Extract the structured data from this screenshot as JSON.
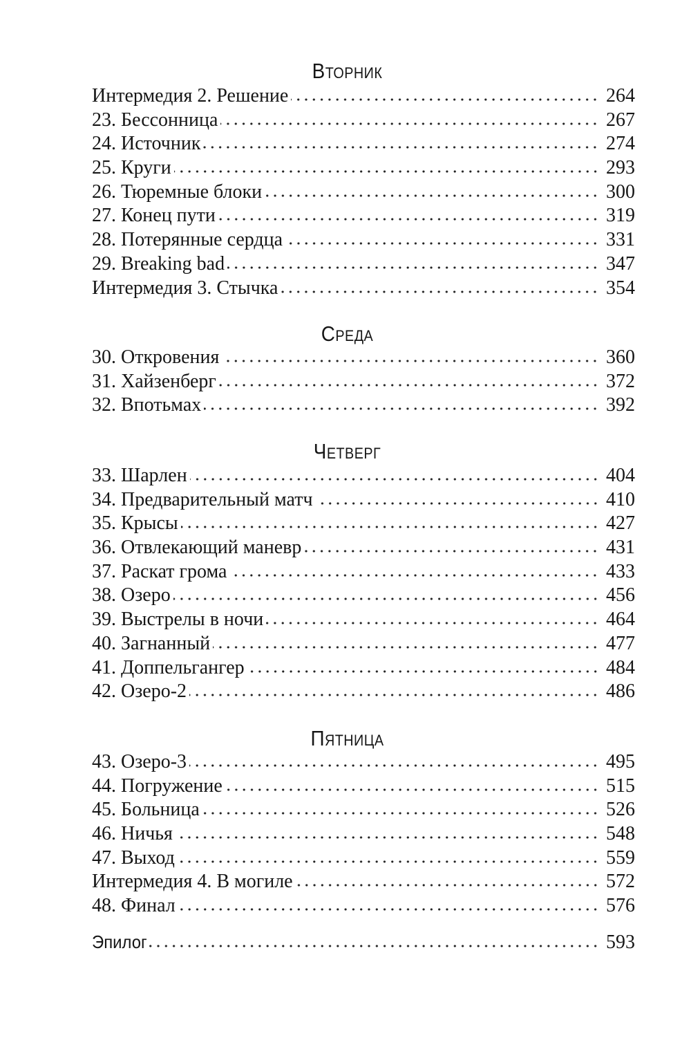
{
  "sections": [
    {
      "heading": "Вторник",
      "entries": [
        {
          "title": "Интермедия 2. Решение",
          "page": "264"
        },
        {
          "title": "23. Бессонница",
          "page": "267"
        },
        {
          "title": "24. Источник",
          "page": "274"
        },
        {
          "title": "25. Круги",
          "page": "293"
        },
        {
          "title": "26. Тюремные блоки",
          "page": "300"
        },
        {
          "title": "27. Конец пути",
          "page": "319"
        },
        {
          "title": "28. Потерянные сердца",
          "page": "331"
        },
        {
          "title": "29. Breaking bad",
          "page": "347"
        },
        {
          "title": "Интермедия 3. Стычка",
          "page": "354"
        }
      ]
    },
    {
      "heading": "Среда",
      "entries": [
        {
          "title": "30. Откровения",
          "page": "360"
        },
        {
          "title": "31. Хайзенберг",
          "page": "372"
        },
        {
          "title": "32. Впотьмах",
          "page": "392"
        }
      ]
    },
    {
      "heading": "Четверг",
      "entries": [
        {
          "title": "33. Шарлен",
          "page": "404"
        },
        {
          "title": "34. Предварительный матч",
          "page": "410"
        },
        {
          "title": "35. Крысы",
          "page": "427"
        },
        {
          "title": "36. Отвлекающий маневр",
          "page": "431"
        },
        {
          "title": "37. Раскат грома",
          "page": "433"
        },
        {
          "title": "38. Озеро",
          "page": "456"
        },
        {
          "title": "39. Выстрелы в ночи",
          "page": "464"
        },
        {
          "title": "40. Загнанный",
          "page": "477"
        },
        {
          "title": "41. Доппельгангер",
          "page": "484"
        },
        {
          "title": "42. Озеро-2",
          "page": "486"
        }
      ]
    },
    {
      "heading": "Пятница",
      "entries": [
        {
          "title": "43. Озеро-3",
          "page": "495"
        },
        {
          "title": "44. Погружение",
          "page": "515"
        },
        {
          "title": "45. Больница",
          "page": "526"
        },
        {
          "title": "46. Ничья",
          "page": "548"
        },
        {
          "title": "47. Выход",
          "page": "559"
        },
        {
          "title": "Интермедия 4. В могиле",
          "page": "572"
        },
        {
          "title": "48. Финал",
          "page": "576"
        }
      ]
    }
  ],
  "epilogue": {
    "title": "Эпилог",
    "page": "593"
  }
}
